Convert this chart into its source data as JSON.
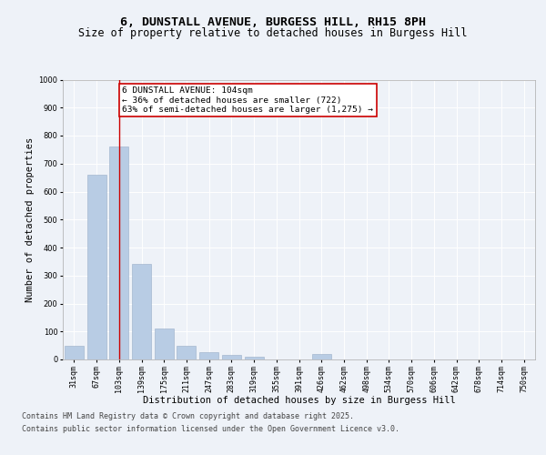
{
  "title_line1": "6, DUNSTALL AVENUE, BURGESS HILL, RH15 8PH",
  "title_line2": "Size of property relative to detached houses in Burgess Hill",
  "xlabel": "Distribution of detached houses by size in Burgess Hill",
  "ylabel": "Number of detached properties",
  "bins": [
    "31sqm",
    "67sqm",
    "103sqm",
    "139sqm",
    "175sqm",
    "211sqm",
    "247sqm",
    "283sqm",
    "319sqm",
    "355sqm",
    "391sqm",
    "426sqm",
    "462sqm",
    "498sqm",
    "534sqm",
    "570sqm",
    "606sqm",
    "642sqm",
    "678sqm",
    "714sqm",
    "750sqm"
  ],
  "values": [
    50,
    660,
    760,
    340,
    110,
    50,
    25,
    15,
    10,
    0,
    0,
    20,
    0,
    0,
    0,
    0,
    0,
    0,
    0,
    0,
    0
  ],
  "bar_color": "#b8cce4",
  "bar_edge_color": "#9aafc8",
  "vline_x": 2,
  "vline_color": "#cc0000",
  "ylim": [
    0,
    1000
  ],
  "yticks": [
    0,
    100,
    200,
    300,
    400,
    500,
    600,
    700,
    800,
    900,
    1000
  ],
  "annotation_text": "6 DUNSTALL AVENUE: 104sqm\n← 36% of detached houses are smaller (722)\n63% of semi-detached houses are larger (1,275) →",
  "annotation_box_color": "#ffffff",
  "annotation_box_edge": "#cc0000",
  "footer_line1": "Contains HM Land Registry data © Crown copyright and database right 2025.",
  "footer_line2": "Contains public sector information licensed under the Open Government Licence v3.0.",
  "bg_color": "#eef2f8",
  "plot_bg_color": "#eef2f8",
  "grid_color": "#ffffff",
  "title_fontsize": 9.5,
  "subtitle_fontsize": 8.5,
  "axis_label_fontsize": 7.5,
  "tick_fontsize": 6,
  "annotation_fontsize": 6.8,
  "footer_fontsize": 6
}
